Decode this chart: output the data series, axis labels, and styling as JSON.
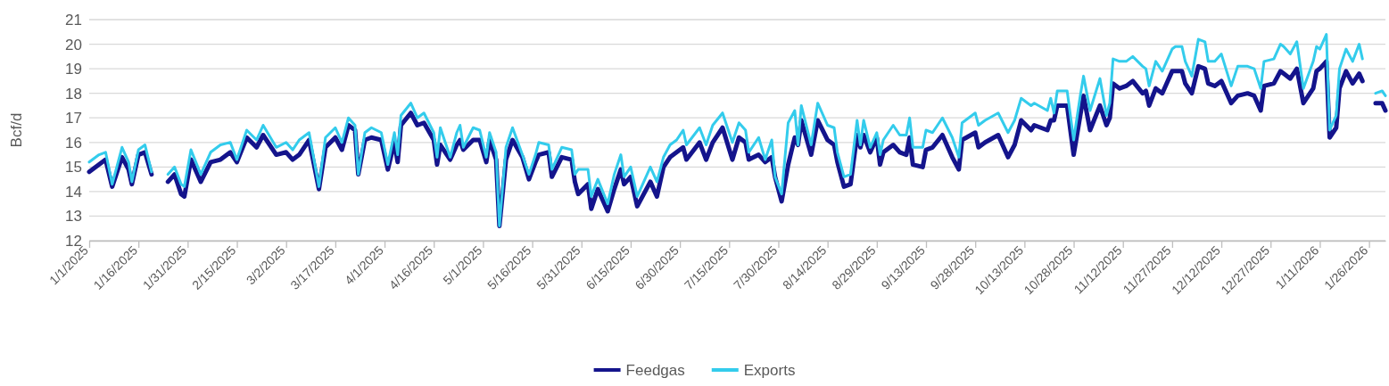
{
  "chart_data": {
    "type": "line",
    "ylabel": "Bcf/d",
    "ylim": [
      12,
      21
    ],
    "yticks": [
      12,
      13,
      14,
      15,
      16,
      17,
      18,
      19,
      20,
      21
    ],
    "xlim": [
      "2025-01-01",
      "2026-01-31"
    ],
    "xticks": [
      {
        "value": "2025-01-01",
        "label": "1/1/2025"
      },
      {
        "value": "2025-01-16",
        "label": "1/16/2025"
      },
      {
        "value": "2025-01-31",
        "label": "1/31/2025"
      },
      {
        "value": "2025-02-15",
        "label": "2/15/2025"
      },
      {
        "value": "2025-03-02",
        "label": "3/2/2025"
      },
      {
        "value": "2025-03-17",
        "label": "3/17/2025"
      },
      {
        "value": "2025-04-01",
        "label": "4/1/2025"
      },
      {
        "value": "2025-04-16",
        "label": "4/16/2025"
      },
      {
        "value": "2025-05-01",
        "label": "5/1/2025"
      },
      {
        "value": "2025-05-16",
        "label": "5/16/2025"
      },
      {
        "value": "2025-05-31",
        "label": "5/31/2025"
      },
      {
        "value": "2025-06-15",
        "label": "6/15/2025"
      },
      {
        "value": "2025-06-30",
        "label": "6/30/2025"
      },
      {
        "value": "2025-07-15",
        "label": "7/15/2025"
      },
      {
        "value": "2025-07-30",
        "label": "7/30/2025"
      },
      {
        "value": "2025-08-14",
        "label": "8/14/2025"
      },
      {
        "value": "2025-08-29",
        "label": "8/29/2025"
      },
      {
        "value": "2025-09-13",
        "label": "9/13/2025"
      },
      {
        "value": "2025-09-28",
        "label": "9/28/2025"
      },
      {
        "value": "2025-10-13",
        "label": "10/13/2025"
      },
      {
        "value": "2025-10-28",
        "label": "10/28/2025"
      },
      {
        "value": "2025-11-12",
        "label": "11/12/2025"
      },
      {
        "value": "2025-11-27",
        "label": "11/27/2025"
      },
      {
        "value": "2025-12-12",
        "label": "12/12/2025"
      },
      {
        "value": "2025-12-27",
        "label": "12/27/2025"
      },
      {
        "value": "2026-01-11",
        "label": "1/11/2026"
      },
      {
        "value": "2026-01-26",
        "label": "1/26/2026"
      }
    ],
    "grid": "y",
    "legend": "bottom",
    "marker": "none",
    "line_style": "solid",
    "x": [
      "2025-01-01",
      "2025-01-04",
      "2025-01-06",
      "2025-01-08",
      "2025-01-11",
      "2025-01-13",
      "2025-01-14",
      "2025-01-16",
      "2025-01-18",
      "2025-01-20",
      "2025-01-21",
      "2025-01-24",
      "2025-01-25",
      "2025-01-27",
      "2025-01-29",
      "2025-01-30",
      "2025-02-01",
      "2025-02-04",
      "2025-02-07",
      "2025-02-10",
      "2025-02-13",
      "2025-02-15",
      "2025-02-18",
      "2025-02-21",
      "2025-02-23",
      "2025-02-27",
      "2025-03-02",
      "2025-03-04",
      "2025-03-06",
      "2025-03-09",
      "2025-03-12",
      "2025-03-14",
      "2025-03-17",
      "2025-03-19",
      "2025-03-21",
      "2025-03-23",
      "2025-03-24",
      "2025-03-26",
      "2025-03-28",
      "2025-03-31",
      "2025-04-02",
      "2025-04-04",
      "2025-04-05",
      "2025-04-06",
      "2025-04-09",
      "2025-04-11",
      "2025-04-13",
      "2025-04-16",
      "2025-04-17",
      "2025-04-18",
      "2025-04-21",
      "2025-04-23",
      "2025-04-24",
      "2025-04-25",
      "2025-04-28",
      "2025-04-30",
      "2025-05-02",
      "2025-05-03",
      "2025-05-05",
      "2025-05-06",
      "2025-05-08",
      "2025-05-10",
      "2025-05-13",
      "2025-05-15",
      "2025-05-17",
      "2025-05-18",
      "2025-05-21",
      "2025-05-22",
      "2025-05-25",
      "2025-05-28",
      "2025-05-29",
      "2025-05-30",
      "2025-06-02",
      "2025-06-03",
      "2025-06-05",
      "2025-06-08",
      "2025-06-10",
      "2025-06-12",
      "2025-06-13",
      "2025-06-15",
      "2025-06-17",
      "2025-06-21",
      "2025-06-23",
      "2025-06-25",
      "2025-06-27",
      "2025-06-29",
      "2025-07-01",
      "2025-07-02",
      "2025-07-06",
      "2025-07-08",
      "2025-07-10",
      "2025-07-13",
      "2025-07-16",
      "2025-07-18",
      "2025-07-20",
      "2025-07-21",
      "2025-07-24",
      "2025-07-26",
      "2025-07-28",
      "2025-07-29",
      "2025-07-31",
      "2025-08-02",
      "2025-08-04",
      "2025-08-05",
      "2025-08-06",
      "2025-08-09",
      "2025-08-11",
      "2025-08-14",
      "2025-08-16",
      "2025-08-17",
      "2025-08-19",
      "2025-08-21",
      "2025-08-23",
      "2025-08-24",
      "2025-08-25",
      "2025-08-27",
      "2025-08-29",
      "2025-08-30",
      "2025-08-31",
      "2025-09-03",
      "2025-09-05",
      "2025-09-07",
      "2025-09-08",
      "2025-09-09",
      "2025-09-12",
      "2025-09-13",
      "2025-09-15",
      "2025-09-18",
      "2025-09-21",
      "2025-09-23",
      "2025-09-24",
      "2025-09-28",
      "2025-09-29",
      "2025-10-01",
      "2025-10-05",
      "2025-10-08",
      "2025-10-10",
      "2025-10-12",
      "2025-10-15",
      "2025-10-16",
      "2025-10-20",
      "2025-10-21",
      "2025-10-22",
      "2025-10-23",
      "2025-10-26",
      "2025-10-28",
      "2025-10-30",
      "2025-10-31",
      "2025-11-02",
      "2025-11-05",
      "2025-11-07",
      "2025-11-08",
      "2025-11-09",
      "2025-11-11",
      "2025-11-13",
      "2025-11-15",
      "2025-11-18",
      "2025-11-19",
      "2025-11-20",
      "2025-11-22",
      "2025-11-24",
      "2025-11-27",
      "2025-11-28",
      "2025-11-30",
      "2025-12-01",
      "2025-12-03",
      "2025-12-05",
      "2025-12-07",
      "2025-12-08",
      "2025-12-10",
      "2025-12-12",
      "2025-12-15",
      "2025-12-17",
      "2025-12-20",
      "2025-12-22",
      "2025-12-24",
      "2025-12-25",
      "2025-12-28",
      "2025-12-30",
      "2025-12-31",
      "2026-01-02",
      "2026-01-04",
      "2026-01-06",
      "2026-01-09",
      "2026-01-10",
      "2026-01-11",
      "2026-01-13",
      "2026-01-14",
      "2026-01-16",
      "2026-01-17",
      "2026-01-19",
      "2026-01-21",
      "2026-01-23",
      "2026-01-24",
      "2026-01-25",
      "2026-01-27",
      "2026-01-28",
      "2026-01-30",
      "2026-01-31"
    ],
    "series": [
      {
        "name": "Feedgas",
        "color": "#14148c",
        "values": [
          14.8,
          15.1,
          15.3,
          14.2,
          15.4,
          14.9,
          14.3,
          15.5,
          15.6,
          14.7,
          null,
          null,
          14.4,
          14.7,
          13.9,
          13.8,
          15.3,
          14.4,
          15.2,
          15.3,
          15.6,
          15.2,
          16.2,
          15.8,
          16.3,
          15.5,
          15.6,
          15.3,
          15.5,
          16.1,
          14.1,
          15.8,
          16.2,
          15.7,
          16.7,
          16.5,
          14.7,
          16.1,
          16.2,
          16.1,
          14.9,
          16.0,
          15.2,
          16.7,
          17.2,
          16.7,
          16.8,
          16.1,
          15.1,
          15.9,
          15.3,
          15.9,
          16.1,
          15.7,
          16.1,
          16.1,
          15.2,
          16.1,
          15.3,
          12.6,
          15.3,
          16.1,
          15.4,
          14.5,
          15.2,
          15.5,
          15.6,
          14.6,
          15.4,
          15.3,
          14.4,
          13.9,
          14.3,
          13.3,
          14.1,
          13.2,
          14.1,
          14.9,
          14.3,
          14.6,
          13.4,
          14.4,
          13.8,
          15.0,
          15.4,
          15.6,
          15.8,
          15.3,
          16.0,
          15.3,
          16.0,
          16.6,
          15.3,
          16.2,
          16.0,
          15.3,
          15.5,
          15.2,
          15.4,
          14.6,
          13.6,
          15.1,
          16.2,
          15.9,
          16.9,
          15.5,
          16.9,
          16.1,
          15.9,
          15.2,
          14.2,
          14.3,
          16.3,
          15.8,
          16.3,
          15.6,
          16.2,
          15.1,
          15.6,
          15.9,
          15.6,
          15.5,
          16.2,
          15.1,
          15.0,
          15.7,
          15.8,
          16.3,
          15.4,
          14.9,
          16.1,
          16.4,
          15.8,
          16.0,
          16.3,
          15.4,
          15.9,
          16.9,
          16.5,
          16.7,
          16.5,
          16.9,
          16.9,
          17.5,
          17.5,
          15.5,
          17.1,
          17.9,
          16.5,
          17.5,
          16.7,
          17.0,
          18.4,
          18.2,
          18.3,
          18.5,
          18.0,
          18.1,
          17.5,
          18.2,
          18.0,
          18.9,
          18.9,
          18.9,
          18.4,
          18.0,
          19.1,
          19.0,
          18.4,
          18.3,
          18.5,
          17.6,
          17.9,
          18.0,
          17.9,
          17.3,
          18.3,
          18.4,
          18.9,
          18.8,
          18.6,
          19.0,
          17.6,
          18.2,
          18.9,
          19.0,
          19.3,
          16.2,
          16.6,
          18.2,
          18.9,
          18.4,
          18.8,
          18.5,
          null,
          null,
          17.6,
          17.6,
          17.3
        ]
      },
      {
        "name": "Exports",
        "color": "#33ccec",
        "values": [
          15.2,
          15.5,
          15.6,
          14.3,
          15.8,
          15.2,
          14.4,
          15.7,
          15.9,
          14.8,
          null,
          null,
          14.7,
          15.0,
          14.3,
          14.2,
          15.7,
          14.7,
          15.6,
          15.9,
          16.0,
          15.3,
          16.5,
          16.1,
          16.7,
          15.8,
          16.0,
          15.7,
          16.1,
          16.4,
          14.2,
          16.2,
          16.6,
          16.0,
          17.0,
          16.7,
          14.7,
          16.4,
          16.6,
          16.4,
          15.1,
          16.4,
          15.5,
          17.1,
          17.6,
          17.0,
          17.2,
          16.4,
          15.4,
          16.6,
          15.4,
          16.4,
          16.7,
          15.8,
          16.6,
          16.5,
          15.4,
          16.4,
          15.6,
          12.6,
          15.8,
          16.6,
          15.5,
          14.7,
          15.5,
          16.0,
          15.9,
          14.9,
          15.8,
          15.7,
          14.7,
          14.9,
          14.9,
          13.8,
          14.5,
          13.5,
          14.7,
          15.5,
          14.6,
          15.0,
          13.8,
          15.0,
          14.4,
          15.4,
          15.9,
          16.1,
          16.5,
          15.9,
          16.6,
          15.9,
          16.7,
          17.2,
          16.0,
          16.8,
          16.5,
          15.6,
          16.2,
          15.3,
          16.1,
          14.6,
          13.9,
          16.8,
          17.3,
          15.9,
          17.5,
          15.9,
          17.6,
          16.7,
          16.6,
          15.6,
          14.6,
          14.7,
          16.9,
          15.9,
          16.9,
          15.8,
          16.4,
          15.5,
          16.1,
          16.7,
          16.3,
          16.3,
          17.0,
          15.8,
          15.8,
          16.5,
          16.4,
          17.0,
          16.2,
          15.4,
          16.8,
          17.2,
          16.7,
          16.9,
          17.2,
          16.4,
          16.9,
          17.8,
          17.5,
          17.6,
          17.3,
          17.8,
          17.2,
          18.1,
          18.1,
          16.1,
          17.9,
          18.7,
          17.3,
          18.6,
          17.1,
          17.6,
          19.4,
          19.3,
          19.3,
          19.5,
          19.1,
          19.0,
          18.3,
          19.3,
          18.9,
          19.8,
          19.9,
          19.9,
          19.3,
          18.7,
          20.2,
          20.1,
          19.3,
          19.3,
          19.6,
          18.3,
          19.1,
          19.1,
          19.0,
          18.2,
          19.3,
          19.4,
          20.0,
          19.9,
          19.6,
          20.1,
          18.2,
          19.3,
          19.9,
          19.8,
          20.4,
          16.5,
          17.1,
          19.0,
          19.8,
          19.3,
          20.0,
          19.4,
          null,
          null,
          18.0,
          18.1,
          17.9
        ]
      }
    ]
  }
}
